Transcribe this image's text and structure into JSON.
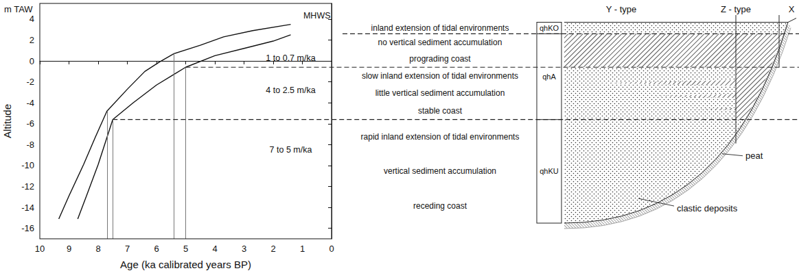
{
  "chart_data": {
    "type": "line",
    "x_label": "Age (ka calibrated years BP)",
    "y_label": "Altitude",
    "y_unit": "m TAW",
    "xlim": [
      10,
      0
    ],
    "xticks": [
      10,
      9,
      8,
      7,
      6,
      5,
      4,
      3,
      2,
      1,
      0
    ],
    "ylim": [
      -17,
      5.5
    ],
    "yticks": [
      -16,
      -14,
      -12,
      -10,
      -8,
      -6,
      -4,
      -2,
      0,
      2,
      4
    ],
    "grid": false,
    "series": [
      {
        "x": [
          9.35,
          9.0,
          8.5,
          8.1,
          7.7,
          7.0,
          6.4,
          5.9,
          5.4,
          4.5,
          3.7,
          2.7,
          1.4
        ],
        "values": [
          -15.1,
          -12.9,
          -9.9,
          -7.3,
          -4.8,
          -2.7,
          -1.0,
          -0.1,
          0.7,
          1.5,
          2.3,
          2.9,
          3.5
        ],
        "color": "#111111"
      },
      {
        "x": [
          8.7,
          8.4,
          8.0,
          7.5,
          6.8,
          6.0,
          5.0,
          4.0,
          3.0,
          2.0,
          1.4
        ],
        "values": [
          -15.1,
          -12.9,
          -9.9,
          -5.6,
          -4.0,
          -2.3,
          -0.6,
          0.5,
          1.2,
          1.9,
          2.5
        ],
        "color": "#111111"
      }
    ],
    "guides": [
      {
        "age": 7.7,
        "altitude": -4.8
      },
      {
        "age": 7.5,
        "altitude": -5.6
      },
      {
        "age": 5.4,
        "altitude": 0.7
      },
      {
        "age": 5.0,
        "altitude": -0.6
      }
    ],
    "annotations": [
      {
        "text": "MHWS",
        "age": 0.5,
        "altitude": 4.3
      },
      {
        "text": "1 to 0.7 m/ka",
        "age": 1.4,
        "altitude": 0.3
      },
      {
        "text": "4 to 2.5 m/ka",
        "age": 1.4,
        "altitude": -2.8
      },
      {
        "text": "7 to 5 m/ka",
        "age": 1.4,
        "altitude": -8.5
      }
    ],
    "boundaries": [
      {
        "altitude": 2.6
      },
      {
        "altitude": -0.6,
        "age": 5.0
      },
      {
        "altitude": -5.6,
        "age": 7.5
      }
    ]
  },
  "schematic": {
    "surface": 3.7,
    "base": -15.5,
    "units": [
      {
        "label": "qhKO",
        "top": 3.7,
        "bottom": 2.6
      },
      {
        "label": "qhA",
        "top": 2.6,
        "bottom": -5.6
      },
      {
        "label": "qhKU",
        "top": -5.6,
        "bottom": -15.5
      }
    ],
    "descriptions": [
      {
        "top": 3.7,
        "bottom": 2.6,
        "lines": [
          "inland extension of tidal environments"
        ]
      },
      {
        "top": 2.6,
        "bottom": -0.6,
        "lines": [
          "no vertical sediment accumulation",
          "prograding coast"
        ]
      },
      {
        "top": -0.6,
        "bottom": -5.6,
        "lines": [
          "slow inland extension of tidal environments",
          "little vertical sediment accumulation",
          "stable coast"
        ]
      },
      {
        "top": -5.6,
        "bottom": -15.5,
        "lines": [
          "rapid inland extension of tidal environments",
          "vertical sediment accumulation",
          "receding coast"
        ]
      }
    ],
    "columns": [
      "Y - type",
      "Z - type",
      "X"
    ],
    "labels": {
      "peat": "peat",
      "clastic": "clastic deposits"
    }
  }
}
